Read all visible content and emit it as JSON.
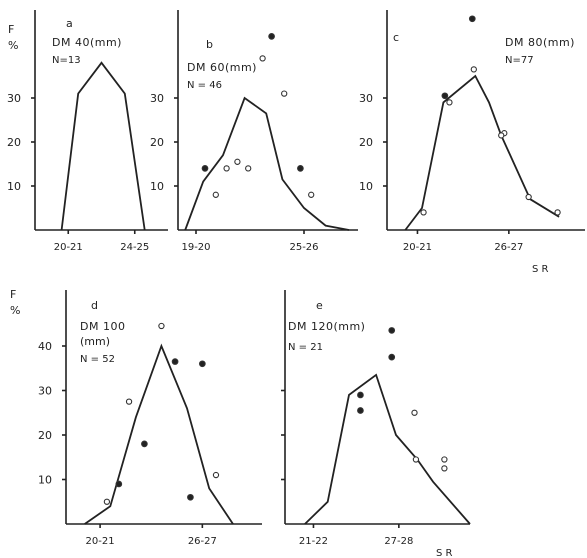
{
  "figure": {
    "y_axis_label_F": "F",
    "y_axis_label_pct": "%",
    "x_axis_label_c": "S R",
    "x_axis_label_e": "S R"
  },
  "chart_data": [
    {
      "id": "a",
      "type": "line",
      "panel_letter": "a",
      "title": "DM 40(mm)",
      "n_label": "N=13",
      "yticks": [
        "30",
        "20",
        "10"
      ],
      "xticks": [
        {
          "label": "20-21",
          "x": 2
        },
        {
          "label": "24-25",
          "x": 6
        }
      ],
      "xlim": [
        0,
        8
      ],
      "ylim": [
        0,
        45
      ],
      "series": [
        {
          "x": [
            1.6,
            2.6,
            4,
            5.4,
            6.6
          ],
          "values": [
            0,
            31,
            38,
            31,
            0
          ]
        }
      ],
      "points": []
    },
    {
      "id": "b",
      "type": "line",
      "panel_letter": "b",
      "title": "DM 60(mm)",
      "n_label": "N = 46",
      "yticks": [
        "30",
        "20",
        "10"
      ],
      "xticks": [
        {
          "label": "19-20",
          "x": 0
        },
        {
          "label": "25-26",
          "x": 6
        }
      ],
      "xlim": [
        -1,
        9
      ],
      "ylim": [
        0,
        45
      ],
      "series": [
        {
          "x": [
            -0.6,
            0.4,
            1.5,
            2.7,
            3.9,
            4.8,
            6,
            7.2,
            8.5
          ],
          "values": [
            0,
            11,
            17,
            30,
            26.5,
            11.5,
            5,
            1,
            -1
          ]
        }
      ],
      "points": [
        {
          "x": 0.5,
          "y": 14,
          "f": true
        },
        {
          "x": 1.1,
          "y": 8,
          "f": false
        },
        {
          "x": 1.7,
          "y": 14,
          "f": false
        },
        {
          "x": 2.3,
          "y": 15.5,
          "f": false
        },
        {
          "x": 2.9,
          "y": 14,
          "f": false
        },
        {
          "x": 3.7,
          "y": 39,
          "f": false
        },
        {
          "x": 4.2,
          "y": 44,
          "f": true
        },
        {
          "x": 4.9,
          "y": 31,
          "f": false
        },
        {
          "x": 5.8,
          "y": 14,
          "f": true
        },
        {
          "x": 6.4,
          "y": 8,
          "f": false
        }
      ]
    },
    {
      "id": "c",
      "type": "line",
      "panel_letter": "c",
      "title": "DM 80(mm)",
      "n_label": "N=77",
      "yticks": [
        "30",
        "20",
        "10"
      ],
      "xticks": [
        {
          "label": "20-21",
          "x": 1
        },
        {
          "label": "26-27",
          "x": 7
        }
      ],
      "xlim": [
        -1,
        12
      ],
      "ylim": [
        0,
        45
      ],
      "series": [
        {
          "x": [
            0.2,
            1.3,
            2.7,
            4.8,
            5.7,
            6.5,
            8.4,
            10.3
          ],
          "values": [
            0,
            5,
            29,
            35,
            29,
            21.5,
            7,
            3
          ]
        }
      ],
      "points": [
        {
          "x": 1.4,
          "y": 4,
          "f": false
        },
        {
          "x": 2.8,
          "y": 30.5,
          "f": true
        },
        {
          "x": 3.1,
          "y": 29,
          "f": false
        },
        {
          "x": 4.6,
          "y": 48,
          "f": true
        },
        {
          "x": 4.7,
          "y": 36.5,
          "f": false
        },
        {
          "x": 6.7,
          "y": 22,
          "f": false
        },
        {
          "x": 6.5,
          "y": 21.5,
          "f": false
        },
        {
          "x": 8.3,
          "y": 7.5,
          "f": false
        },
        {
          "x": 10.2,
          "y": 4,
          "f": false
        }
      ]
    },
    {
      "id": "d",
      "type": "line",
      "panel_letter": "d",
      "title": "DM 100",
      "title2": "(mm)",
      "n_label": "N = 52",
      "yticks": [
        "40",
        "30",
        "20",
        "10"
      ],
      "xticks": [
        {
          "label": "20-21",
          "x": 1
        },
        {
          "label": "26-27",
          "x": 7
        }
      ],
      "xlim": [
        -1,
        10.5
      ],
      "ylim": [
        0,
        50
      ],
      "series": [
        {
          "x": [
            0.1,
            1.6,
            3.1,
            4.6,
            6.1,
            7.4,
            8.8
          ],
          "values": [
            0,
            4,
            24,
            40,
            26,
            8,
            0
          ]
        }
      ],
      "points": [
        {
          "x": 1.4,
          "y": 5,
          "f": false
        },
        {
          "x": 2.1,
          "y": 9,
          "f": true
        },
        {
          "x": 2.7,
          "y": 27.5,
          "f": false
        },
        {
          "x": 3.6,
          "y": 18,
          "f": true
        },
        {
          "x": 4.6,
          "y": 44.5,
          "f": false
        },
        {
          "x": 5.4,
          "y": 36.5,
          "f": true
        },
        {
          "x": 6.3,
          "y": 6,
          "f": true
        },
        {
          "x": 7.0,
          "y": 36,
          "f": true
        },
        {
          "x": 7.8,
          "y": 11,
          "f": false
        }
      ]
    },
    {
      "id": "e",
      "type": "line",
      "panel_letter": "e",
      "title": "DM 120(mm)",
      "n_label": "N = 21",
      "yticks": [],
      "xticks": [
        {
          "label": "21-22",
          "x": 1
        },
        {
          "label": "27-28",
          "x": 7
        }
      ],
      "xlim": [
        -1,
        12
      ],
      "ylim": [
        0,
        50
      ],
      "series": [
        {
          "x": [
            0.4,
            2,
            3.5,
            5.4,
            6.8,
            8.3,
            9.4,
            12
          ],
          "values": [
            0,
            5,
            29,
            33.5,
            20,
            14.5,
            9.5,
            0
          ]
        }
      ],
      "points": [
        {
          "x": 4.3,
          "y": 29,
          "f": true
        },
        {
          "x": 4.3,
          "y": 25.5,
          "f": true
        },
        {
          "x": 6.5,
          "y": 43.5,
          "f": true
        },
        {
          "x": 6.5,
          "y": 37.5,
          "f": true
        },
        {
          "x": 8.1,
          "y": 25,
          "f": false
        },
        {
          "x": 8.2,
          "y": 14.5,
          "f": false
        },
        {
          "x": 10.2,
          "y": 14.5,
          "f": false
        },
        {
          "x": 10.2,
          "y": 12.5,
          "f": false
        }
      ]
    }
  ]
}
